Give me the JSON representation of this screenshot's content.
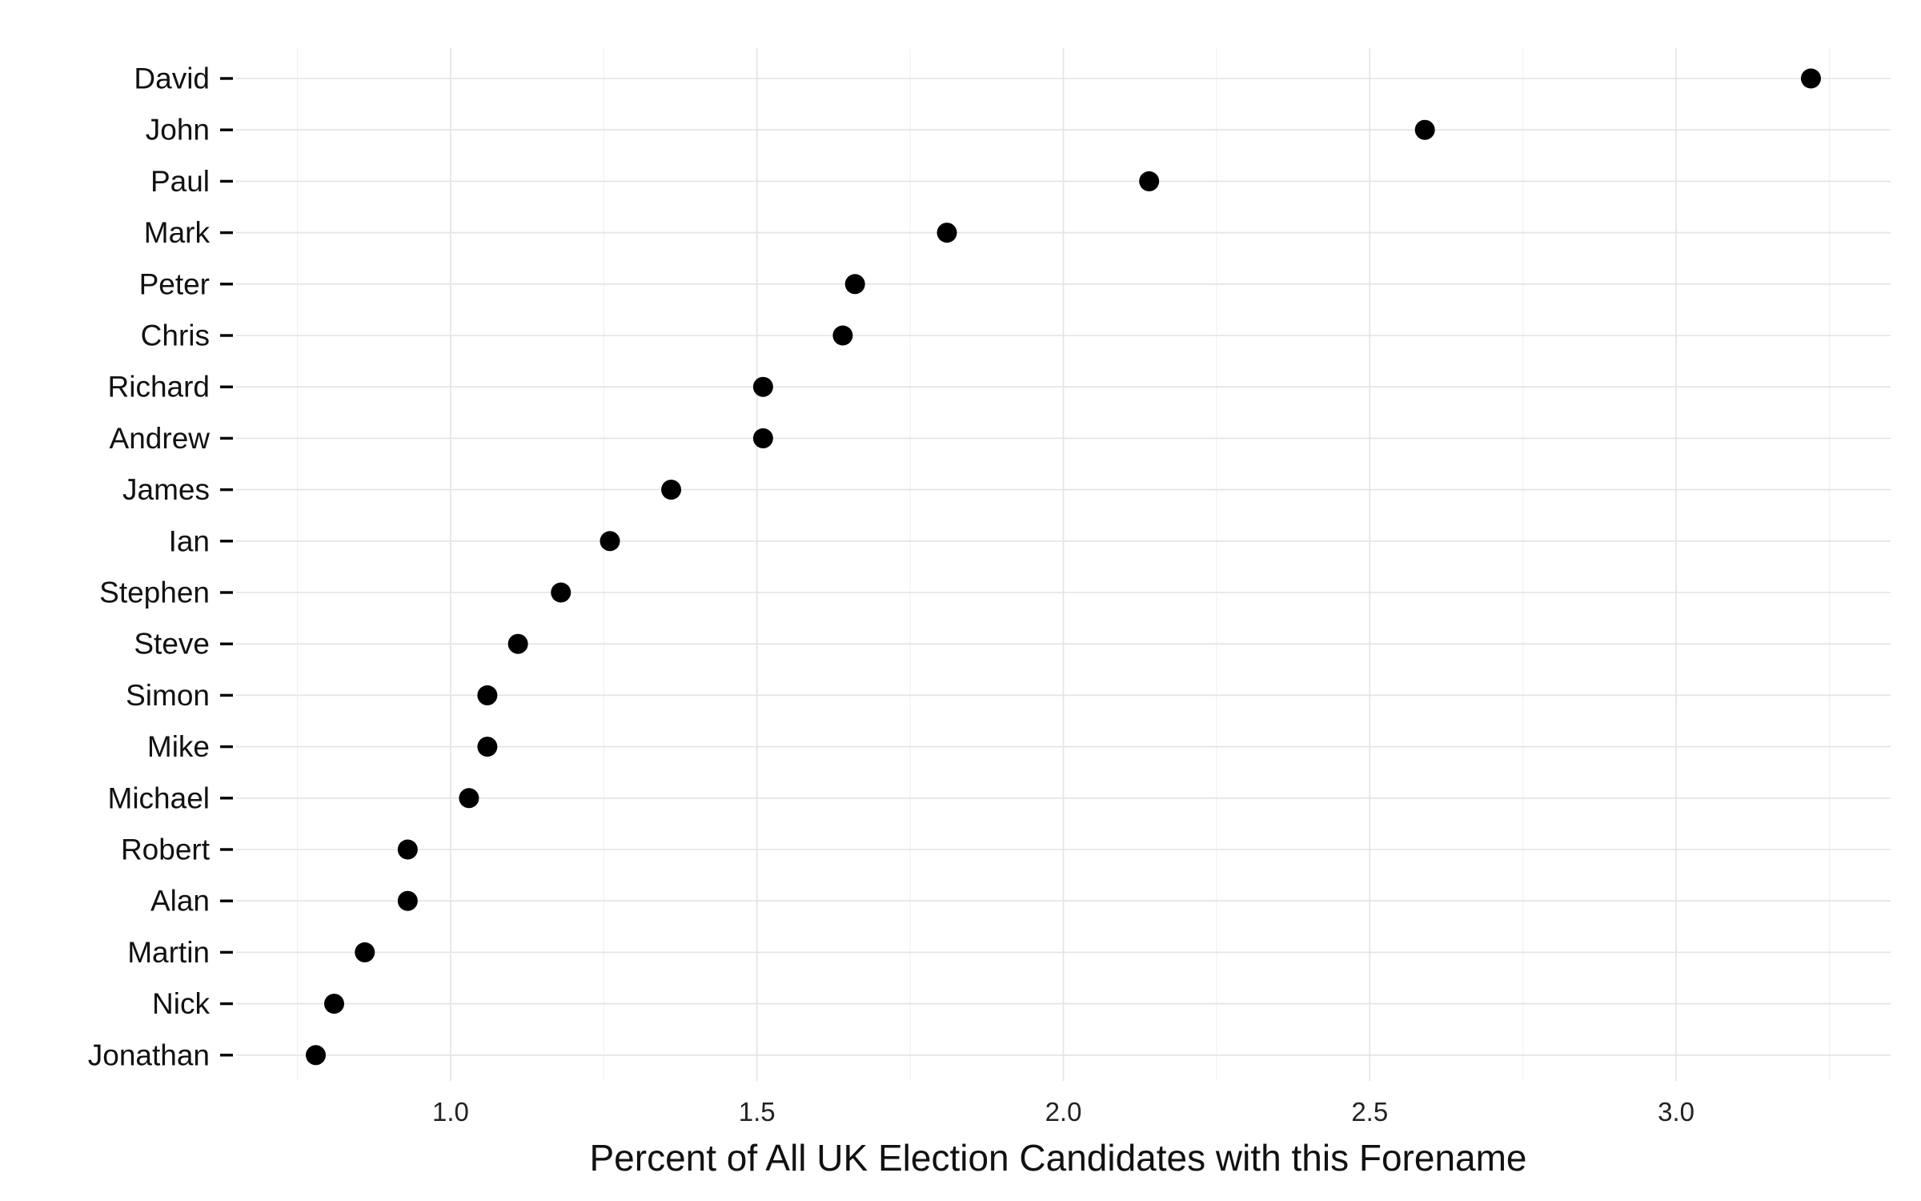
{
  "chart_data": {
    "type": "scatter",
    "title": "",
    "xlabel": "Percent of All UK Election Candidates with this Forename",
    "ylabel": "",
    "xlim": [
      0.65,
      3.35
    ],
    "x_ticks": [
      1.0,
      1.5,
      2.0,
      2.5,
      3.0
    ],
    "x_tick_labels": [
      "1.0",
      "1.5",
      "2.0",
      "2.5",
      "3.0"
    ],
    "x_minor_ticks": [
      0.75,
      1.25,
      1.75,
      2.25,
      2.75,
      3.25
    ],
    "grid": true,
    "legend": "none",
    "point_color": "#000000",
    "categories": [
      "David",
      "John",
      "Paul",
      "Mark",
      "Peter",
      "Chris",
      "Richard",
      "Andrew",
      "James",
      "Ian",
      "Stephen",
      "Steve",
      "Simon",
      "Mike",
      "Michael",
      "Robert",
      "Alan",
      "Martin",
      "Nick",
      "Jonathan"
    ],
    "values": [
      3.22,
      2.59,
      2.14,
      1.81,
      1.66,
      1.64,
      1.51,
      1.51,
      1.36,
      1.26,
      1.18,
      1.11,
      1.06,
      1.06,
      1.03,
      0.93,
      0.93,
      0.86,
      0.81,
      0.78
    ]
  }
}
